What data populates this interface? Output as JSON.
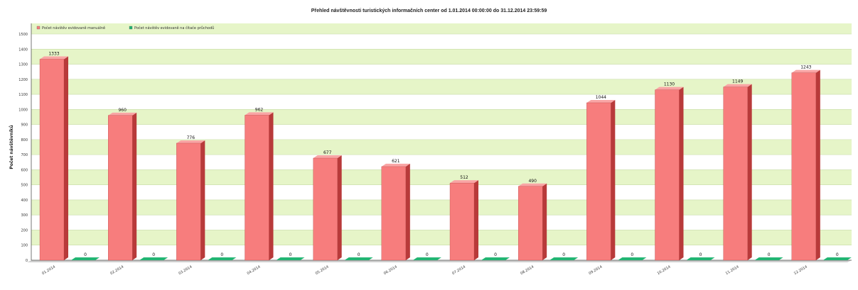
{
  "chart_data": {
    "type": "bar",
    "title": "Přehled návštěvnosti turistických informačních center od 1.01.2014 00:00:00 do 31.12.2014 23:59:59",
    "ylabel": "Počet návštěvníků",
    "xlabel": "",
    "ylim": [
      0,
      1500
    ],
    "yticks": [
      0,
      100,
      200,
      300,
      400,
      500,
      600,
      700,
      800,
      900,
      1000,
      1100,
      1200,
      1300,
      1400,
      1500
    ],
    "grid": true,
    "legend_position": "top-left",
    "categories": [
      "01.2014",
      "02.2014",
      "03.2014",
      "04.2014",
      "05.2014",
      "06.2014",
      "07.2014",
      "08.2014",
      "09.2014",
      "10.2014",
      "11.2014",
      "12.2014"
    ],
    "series": [
      {
        "name": "Počet návštěv evidovaně manuálně",
        "color": "#f77d7d",
        "values": [
          1333,
          960,
          776,
          962,
          677,
          621,
          512,
          490,
          1044,
          1130,
          1149,
          1243
        ]
      },
      {
        "name": "Počet návštěv evidovaně na čítače průchodů",
        "color": "#22b573",
        "values": [
          0,
          0,
          0,
          0,
          0,
          0,
          0,
          0,
          0,
          0,
          0,
          0
        ]
      }
    ]
  }
}
